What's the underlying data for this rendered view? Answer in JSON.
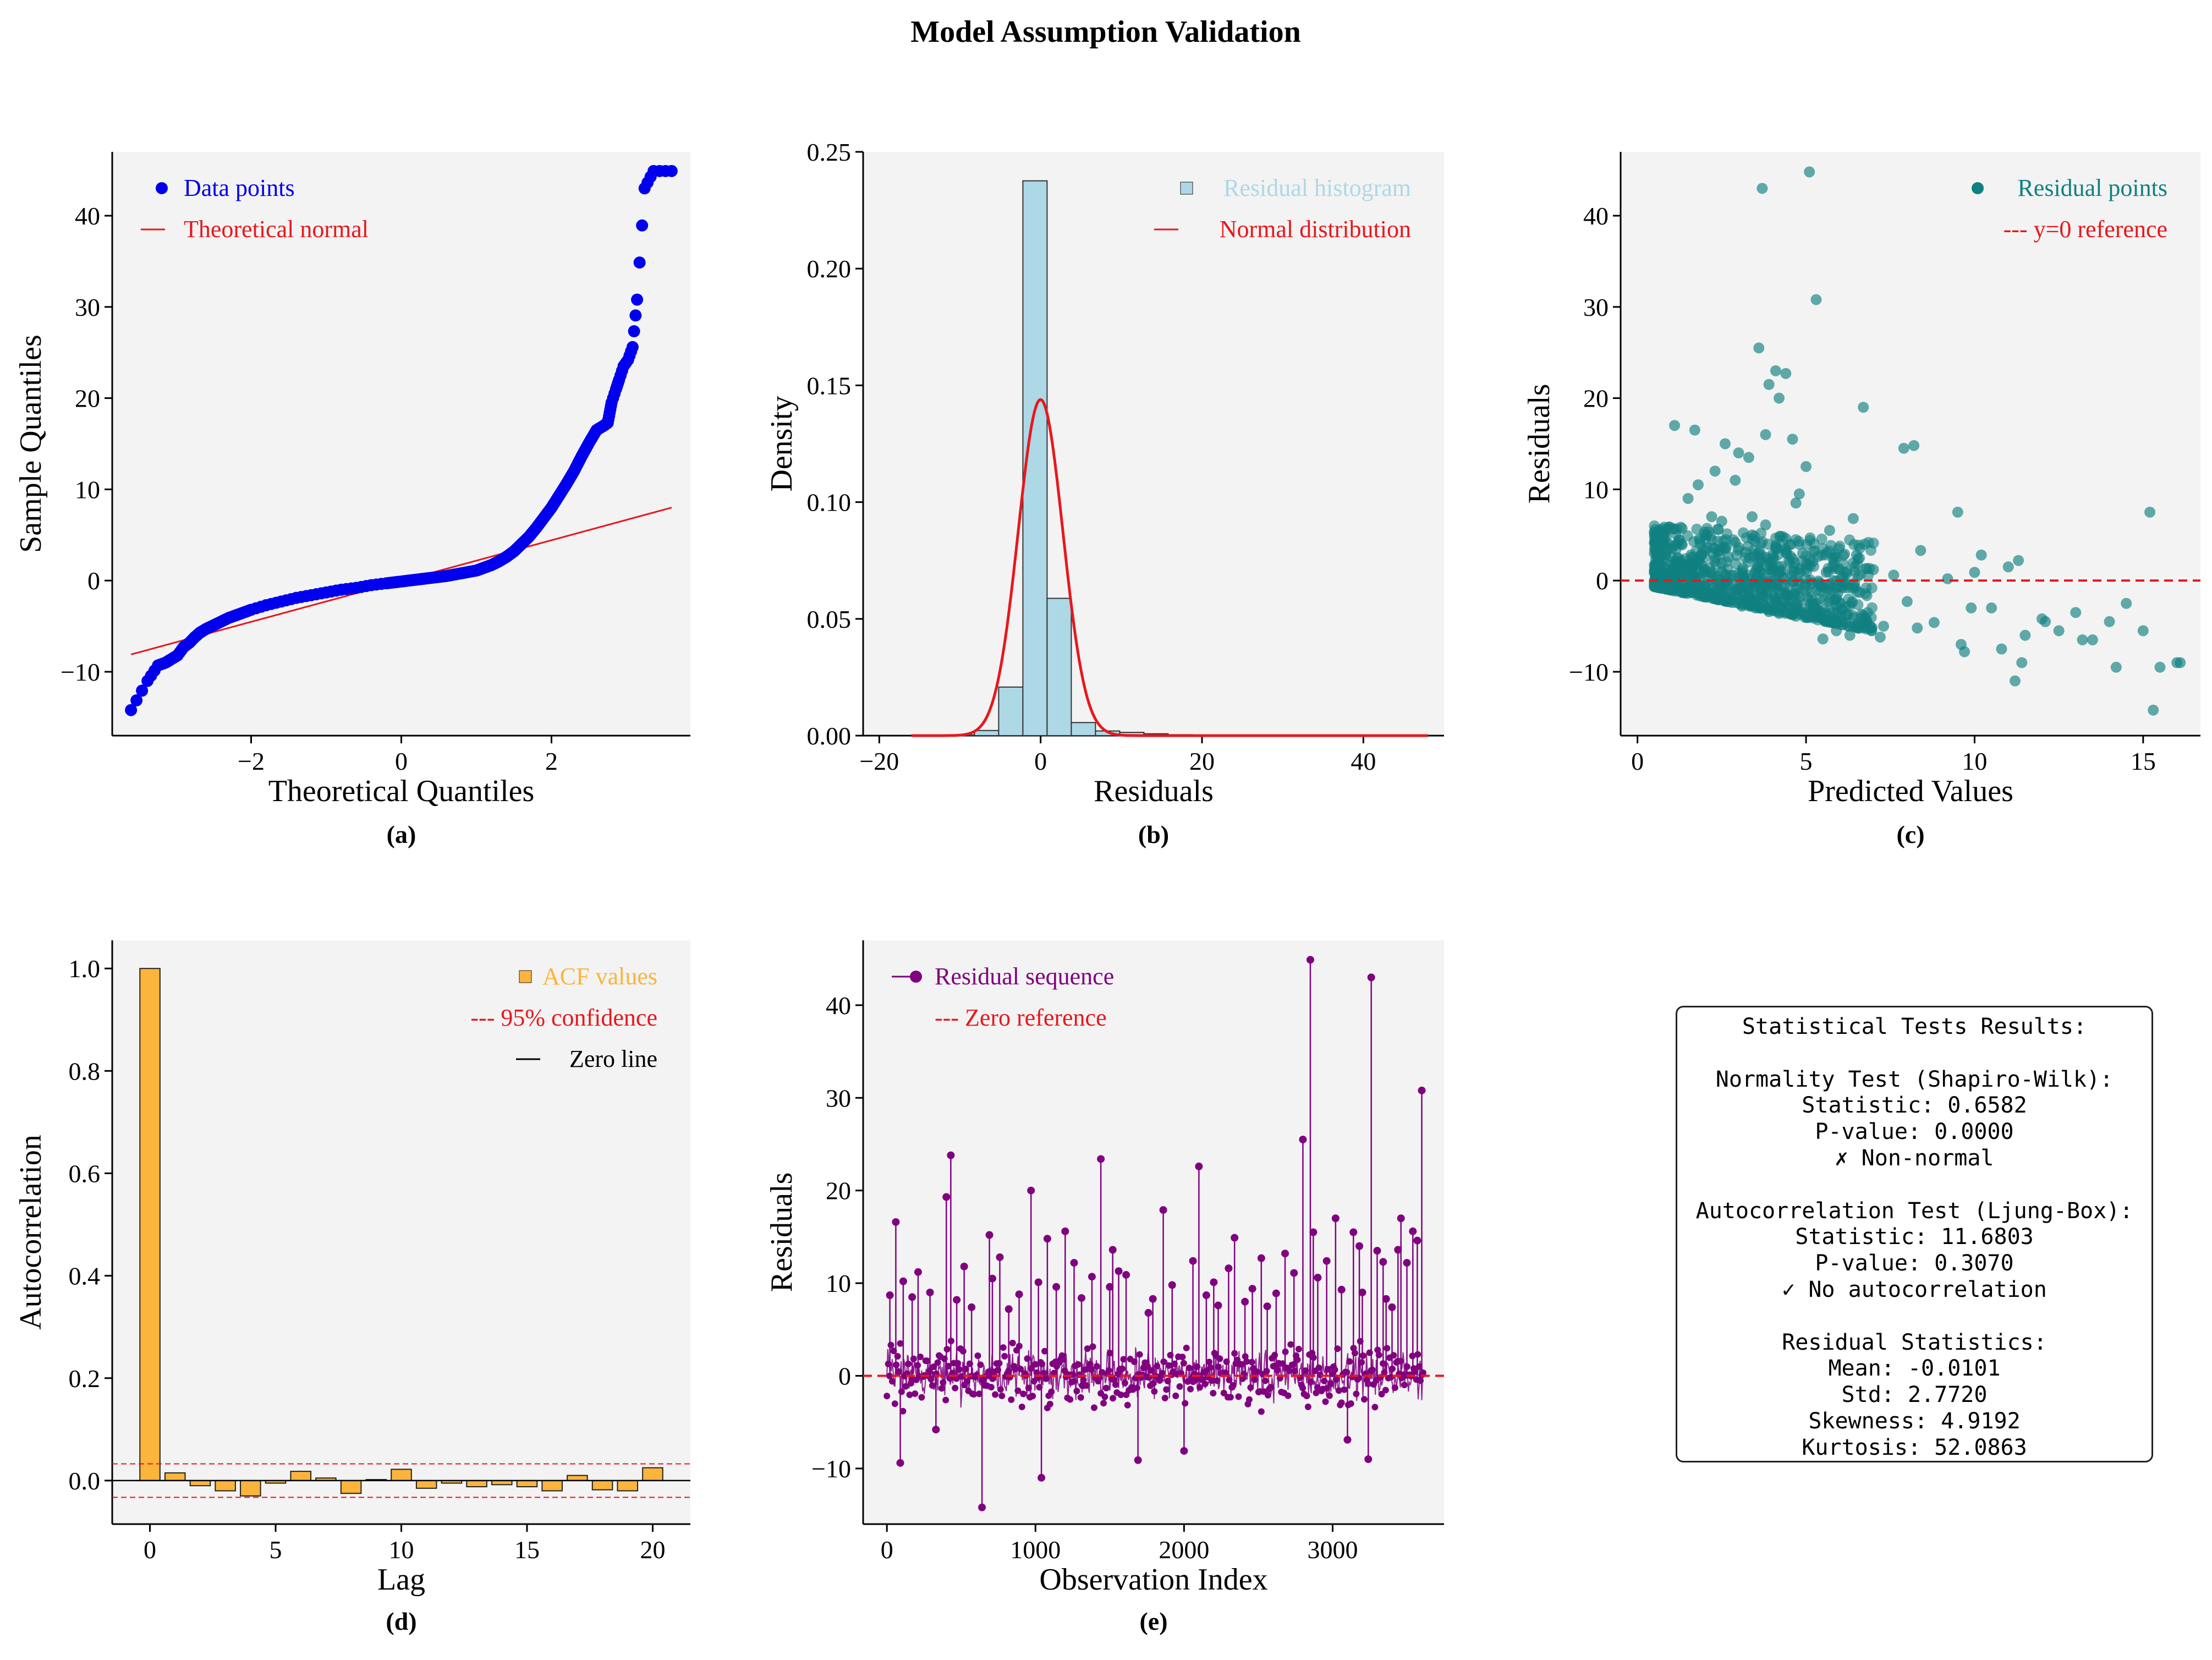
{
  "figure": {
    "title": "Model Assumption Validation",
    "colors": {
      "panel_bg": "#f3f3f3",
      "qq_points": "#0000ee",
      "red": "#e8171c",
      "hist_fill": "#add8e6",
      "residual_teal": "#108080",
      "acf_orange": "#fbb43c",
      "sequence_purple": "#800080"
    }
  },
  "chart_data": [
    {
      "id": "a",
      "type": "scatter",
      "caption": "(a)",
      "xlabel": "Theoretical Quantiles",
      "ylabel": "Sample Quantiles",
      "xlim": [
        -3.85,
        3.85
      ],
      "ylim": [
        -17,
        47
      ],
      "xticks": [
        -2,
        0,
        2
      ],
      "xtick_labels": [
        "−2",
        "0",
        "2"
      ],
      "yticks": [
        -10,
        0,
        10,
        20,
        30,
        40
      ],
      "ytick_labels": [
        "−10",
        "0",
        "10",
        "20",
        "30",
        "40"
      ],
      "legend": {
        "position": "top-left",
        "entries": [
          "Data points",
          "Theoretical normal"
        ]
      },
      "reference_line": {
        "x": [
          -3.6,
          3.6
        ],
        "y": [
          -8.1,
          8.0
        ]
      },
      "points_x": [
        -3.6,
        -3.38,
        -3.24,
        -3.14,
        -3.06,
        -2.98,
        -2.9,
        -2.82,
        -2.75,
        -2.68,
        -2.6,
        -2.5,
        -2.4,
        -2.3,
        -2.2,
        -2.1,
        -2.0,
        -1.8,
        -1.6,
        -1.4,
        -1.2,
        -1.0,
        -0.8,
        -0.6,
        -0.4,
        -0.2,
        0.0,
        0.2,
        0.4,
        0.6,
        0.8,
        1.0,
        1.1,
        1.2,
        1.3,
        1.4,
        1.5,
        1.6,
        1.7,
        1.8,
        1.9,
        2.0,
        2.1,
        2.2,
        2.3,
        2.4,
        2.5,
        2.6,
        2.7,
        2.75,
        2.8,
        2.86,
        2.9,
        2.96,
        3.02,
        3.08,
        3.14,
        3.24,
        3.36,
        3.6
      ],
      "points_y": [
        -14.2,
        -11.0,
        -9.3,
        -9.0,
        -8.6,
        -8.2,
        -7.3,
        -6.8,
        -6.2,
        -5.7,
        -5.3,
        -4.9,
        -4.5,
        -4.1,
        -3.8,
        -3.5,
        -3.2,
        -2.7,
        -2.3,
        -1.9,
        -1.6,
        -1.3,
        -1.0,
        -0.8,
        -0.5,
        -0.3,
        -0.1,
        0.1,
        0.3,
        0.5,
        0.8,
        1.1,
        1.4,
        1.7,
        2.1,
        2.6,
        3.2,
        4.0,
        4.8,
        5.8,
        6.9,
        8.0,
        9.3,
        10.6,
        12.0,
        13.6,
        15.1,
        16.5,
        17.0,
        17.3,
        19.5,
        21.0,
        22.0,
        23.5,
        24.2,
        25.6,
        30.8,
        43.0,
        44.9,
        44.9
      ]
    },
    {
      "id": "b",
      "type": "bar",
      "caption": "(b)",
      "xlabel": "Residuals",
      "ylabel": "Density",
      "xlim": [
        -22,
        50
      ],
      "ylim": [
        0,
        0.25
      ],
      "xticks": [
        -20,
        0,
        20,
        40
      ],
      "xtick_labels": [
        "−20",
        "0",
        "20",
        "40"
      ],
      "yticks": [
        0,
        0.05,
        0.1,
        0.15,
        0.2,
        0.25
      ],
      "ytick_labels": [
        "0.00",
        "0.05",
        "0.10",
        "0.15",
        "0.20",
        "0.25"
      ],
      "legend": {
        "position": "top-right",
        "entries": [
          "Residual histogram",
          "Normal distribution"
        ]
      },
      "bin_edges": [
        -14.2,
        -11.2,
        -8.2,
        -5.2,
        -2.2,
        0.8,
        3.8,
        6.8,
        9.8,
        12.8,
        15.8,
        18.8,
        21.8,
        24.8,
        27.8,
        30.8,
        33.8,
        36.8,
        39.8,
        42.8,
        45.8
      ],
      "densities": [
        0.0001,
        0.0003,
        0.0022,
        0.0208,
        0.2376,
        0.0588,
        0.0056,
        0.002,
        0.0014,
        0.0008,
        0.0004,
        0.0003,
        0.0002,
        0.0001,
        0.0001,
        0.0001,
        0.0001,
        0.0001,
        0.0001,
        0.0002
      ],
      "normal_curve": {
        "mean": -0.0101,
        "std": 2.772,
        "x_range": [
          -16,
          48
        ]
      }
    },
    {
      "id": "c",
      "type": "scatter",
      "caption": "(c)",
      "xlabel": "Predicted Values",
      "ylabel": "Residuals",
      "xlim": [
        -0.5,
        16.7
      ],
      "ylim": [
        -17,
        47
      ],
      "xticks": [
        0,
        5,
        10,
        15
      ],
      "xtick_labels": [
        "0",
        "5",
        "10",
        "15"
      ],
      "yticks": [
        -10,
        0,
        10,
        20,
        30,
        40
      ],
      "ytick_labels": [
        "−10",
        "0",
        "10",
        "20",
        "30",
        "40"
      ],
      "legend": {
        "position": "top-right",
        "entries": [
          "Residual points",
          "y=0 reference"
        ]
      },
      "reference_y": 0,
      "points_x": [
        0.6,
        0.8,
        1.0,
        1.1,
        1.2,
        1.3,
        1.4,
        1.5,
        1.6,
        1.7,
        1.8,
        1.9,
        2.0,
        2.1,
        2.2,
        2.3,
        2.4,
        2.5,
        2.6,
        2.7,
        2.8,
        2.9,
        3.0,
        3.1,
        3.2,
        3.3,
        3.4,
        3.5,
        3.6,
        3.7,
        3.8,
        3.9,
        4.0,
        4.1,
        4.2,
        4.3,
        4.4,
        4.5,
        4.6,
        4.7,
        4.8,
        4.9,
        5.0,
        5.2,
        5.4,
        5.6,
        5.8,
        6.0,
        6.2,
        6.5,
        6.8,
        7.0,
        7.3,
        7.6,
        8.0,
        8.4,
        8.8,
        9.2,
        9.6,
        10.0,
        10.5,
        11.0,
        11.5,
        12.0,
        12.5,
        13.0,
        13.5,
        14.0,
        14.5,
        15.0,
        15.5,
        16.0,
        1.1,
        1.5,
        1.7,
        2.3,
        2.6,
        3.0,
        3.3,
        3.8,
        4.2,
        4.6,
        5.0,
        3.7,
        4.1,
        3.6,
        5.1,
        5.3,
        4.4,
        3.9,
        2.9,
        2.2,
        1.8,
        4.8,
        6.7,
        7.9,
        8.2,
        9.5,
        10.2,
        11.3,
        11.2,
        15.2,
        15.3,
        16.1,
        14.2,
        13.2,
        12.1,
        11.4,
        10.8,
        9.9,
        9.7,
        8.3,
        7.2,
        6.3,
        5.9,
        5.5,
        5.7,
        6.4,
        2.0,
        2.5,
        3.4,
        4.7,
        0.9,
        1.3
      ],
      "points_y": [
        0.8,
        0.5,
        0.2,
        1.5,
        -0.5,
        2.2,
        0.9,
        -1.0,
        1.8,
        0.3,
        -1.4,
        2.8,
        1.2,
        -1.7,
        0.6,
        3.5,
        -2.1,
        1.9,
        -0.4,
        2.6,
        -2.4,
        4.2,
        0.8,
        -2.8,
        3.1,
        -0.9,
        5.0,
        -3.0,
        2.0,
        -1.5,
        6.1,
        -3.4,
        1.0,
        3.7,
        -3.6,
        0.4,
        4.6,
        -2.2,
        2.4,
        -3.9,
        1.3,
        3.0,
        -1.1,
        2.1,
        -4.0,
        0.9,
        1.6,
        -2.5,
        -3.8,
        2.8,
        -4.4,
        1.2,
        -5.0,
        0.6,
        -2.3,
        3.3,
        -4.6,
        0.2,
        -7.0,
        0.9,
        -3.0,
        1.5,
        -6.0,
        -4.2,
        -5.5,
        -3.5,
        -6.5,
        -4.5,
        -2.5,
        -5.5,
        -9.5,
        -9.0,
        17.0,
        9.0,
        16.5,
        12.0,
        15.0,
        14.0,
        13.5,
        16.0,
        20.0,
        15.5,
        12.5,
        43.0,
        23.0,
        25.5,
        44.8,
        30.8,
        22.7,
        21.5,
        11.0,
        7.0,
        10.5,
        9.5,
        19.0,
        14.5,
        14.8,
        7.5,
        2.8,
        2.2,
        -11.0,
        7.5,
        -14.2,
        -9.0,
        -9.5,
        -6.5,
        -4.5,
        -9.0,
        -7.5,
        -3.0,
        -7.8,
        -5.2,
        -6.2,
        -6.0,
        -5.5,
        -6.4,
        5.5,
        6.8,
        5.0,
        6.5,
        7.0,
        8.5,
        3.5,
        4.0
      ]
    },
    {
      "id": "d",
      "type": "bar",
      "caption": "(d)",
      "xlabel": "Lag",
      "ylabel": "Autocorrelation",
      "xlim": [
        -1.5,
        21.5
      ],
      "ylim": [
        -0.085,
        1.055
      ],
      "xticks": [
        0,
        5,
        10,
        15,
        20
      ],
      "xtick_labels": [
        "0",
        "5",
        "10",
        "15",
        "20"
      ],
      "yticks": [
        0,
        0.2,
        0.4,
        0.6,
        0.8,
        1.0
      ],
      "ytick_labels": [
        "0.0",
        "0.2",
        "0.4",
        "0.6",
        "0.8",
        "1.0"
      ],
      "legend": {
        "position": "top-right",
        "entries": [
          "ACF values",
          "95% confidence",
          "Zero line"
        ]
      },
      "lags": [
        0,
        1,
        2,
        3,
        4,
        5,
        6,
        7,
        8,
        9,
        10,
        11,
        12,
        13,
        14,
        15,
        16,
        17,
        18,
        19,
        20
      ],
      "acf": [
        1.0,
        0.015,
        -0.01,
        -0.02,
        -0.03,
        -0.005,
        0.018,
        0.005,
        -0.025,
        0.002,
        0.022,
        -0.015,
        -0.005,
        -0.012,
        -0.008,
        -0.012,
        -0.02,
        0.01,
        -0.018,
        -0.02,
        0.025
      ],
      "confidence": 0.0327
    },
    {
      "id": "e",
      "type": "line",
      "caption": "(e)",
      "xlabel": "Observation Index",
      "ylabel": "Residuals",
      "xlim": [
        -160,
        3750
      ],
      "ylim": [
        -16,
        47
      ],
      "xticks": [
        0,
        1000,
        2000,
        3000
      ],
      "xtick_labels": [
        "0",
        "1000",
        "2000",
        "3000"
      ],
      "yticks": [
        -10,
        0,
        10,
        20,
        30,
        40
      ],
      "ytick_labels": [
        "−10",
        "0",
        "10",
        "20",
        "30",
        "40"
      ],
      "legend": {
        "position": "top-left",
        "entries": [
          "Residual sequence",
          "Zero reference"
        ]
      },
      "reference_y": 0,
      "n_observations": 3612,
      "spikes_x": [
        20,
        60,
        90,
        110,
        170,
        210,
        290,
        330,
        400,
        430,
        470,
        520,
        570,
        640,
        690,
        710,
        760,
        820,
        890,
        970,
        1020,
        1040,
        1080,
        1140,
        1200,
        1260,
        1310,
        1380,
        1440,
        1500,
        1520,
        1560,
        1610,
        1690,
        1760,
        1790,
        1860,
        1920,
        2000,
        2060,
        2100,
        2150,
        2200,
        2230,
        2300,
        2340,
        2410,
        2460,
        2520,
        2560,
        2620,
        2680,
        2740,
        2800,
        2850,
        2870,
        2900,
        2960,
        3020,
        3060,
        3100,
        3140,
        3180,
        3200,
        3240,
        3260,
        3300,
        3340,
        3360,
        3400,
        3440,
        3460,
        3500,
        3540,
        3570,
        3600
      ],
      "spikes_y": [
        8.7,
        16.6,
        -9.4,
        10.2,
        8.5,
        11.2,
        9.0,
        -5.8,
        19.3,
        23.8,
        8.2,
        11.8,
        7.4,
        -14.2,
        15.2,
        10.5,
        12.8,
        7.2,
        8.8,
        20.0,
        10.1,
        -11.0,
        14.8,
        9.6,
        15.6,
        12.2,
        8.4,
        10.7,
        23.4,
        9.6,
        13.6,
        11.3,
        10.9,
        -9.1,
        6.8,
        8.3,
        17.9,
        9.8,
        -8.1,
        12.4,
        22.6,
        8.7,
        10.1,
        7.6,
        11.6,
        14.9,
        8.0,
        9.4,
        12.7,
        7.5,
        8.9,
        13.2,
        11.1,
        25.5,
        44.9,
        15.5,
        10.6,
        12.4,
        17.0,
        9.3,
        -6.9,
        15.5,
        14.0,
        9.0,
        -9.0,
        43.0,
        13.5,
        12.3,
        8.3,
        7.4,
        13.6,
        17.0,
        12.2,
        15.6,
        14.6,
        30.8
      ],
      "noise_band": [
        -4,
        4
      ]
    }
  ],
  "stats_panel": {
    "title": "Statistical Tests Results:",
    "lines": [
      "",
      "Normality Test (Shapiro-Wilk):",
      "Statistic: 0.6582",
      "P-value: 0.0000",
      "✗ Non-normal",
      "",
      "Autocorrelation Test (Ljung-Box):",
      "Statistic: 11.6803",
      "P-value: 0.3070",
      "✓ No autocorrelation",
      "",
      "Residual Statistics:",
      "Mean: -0.0101",
      "Std: 2.7720",
      "Skewness: 4.9192",
      "Kurtosis: 52.0863"
    ]
  }
}
